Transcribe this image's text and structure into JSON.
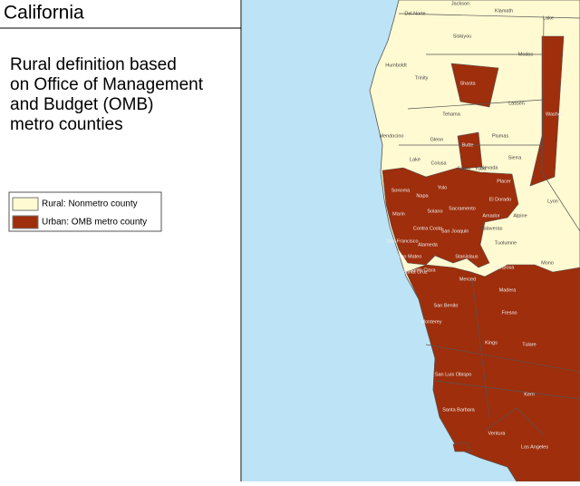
{
  "header": {
    "title": "California"
  },
  "description": [
    "Rural definition based",
    "on Office of Management",
    "and Budget (OMB)",
    "metro counties"
  ],
  "legend": [
    {
      "label": "Rural: Nonmetro county",
      "color": "#fffad2"
    },
    {
      "label": "Urban: OMB metro county",
      "color": "#9e2e0c"
    }
  ],
  "map": {
    "labels": [
      "Jackson",
      "Klamath",
      "Lake",
      "Del Norte",
      "Siskiyou",
      "Modoc",
      "Humboldt",
      "Trinity",
      "Shasta",
      "Lassen",
      "Tehama",
      "Plumas",
      "Mendocino",
      "Glenn",
      "Butte",
      "Sierra",
      "Washoe",
      "Lake",
      "Colusa",
      "Sutter",
      "Nevada",
      "Yuba",
      "Placer",
      "Sonoma",
      "Napa",
      "Yolo",
      "Sacramento",
      "El Dorado",
      "Marin",
      "Solano",
      "Amador",
      "Alpine",
      "Lyon",
      "Contra Costa",
      "San Joaquin",
      "Calaveras",
      "Tuolumne",
      "Mono",
      "San Francisco",
      "Alameda",
      "Stanislaus",
      "San Mateo",
      "Santa Clara",
      "Mariposa",
      "Santa Cruz",
      "Merced",
      "Madera",
      "San Benito",
      "Fresno",
      "Monterey",
      "Kings",
      "Tulare",
      "San Luis Obispo",
      "Kern",
      "Santa Barbara",
      "Ventura",
      "Los Angeles"
    ]
  }
}
